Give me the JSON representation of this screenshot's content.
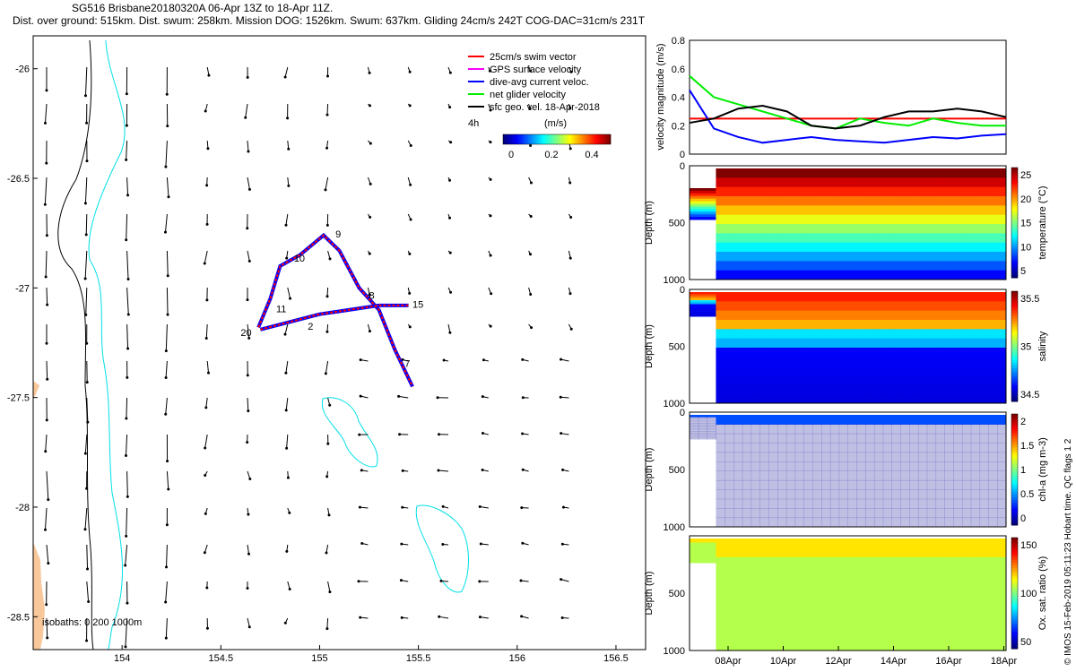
{
  "header": {
    "title_line1": "SG516 Brisbane20180320A 06-Apr 13Z to 18-Apr 11Z.",
    "title_line2": "Dist. over ground: 515km. Dist. swum: 258km. Mission DOG: 1526km. Swum: 637km. Gliding 24cm/s 242T COG-DAC=31cm/s 231T"
  },
  "credit": "© IMOS 15-Feb-2019 05:11:23 Hobart time. QC flags 1  2",
  "colors": {
    "glider_track": "#ff0000",
    "dac": "#0000ff",
    "net": "#00ee00",
    "isobath_200": "#00e0e8",
    "coast": "#f8c79a"
  },
  "chart_data": [
    {
      "type": "map",
      "id": "track-map",
      "xlim": [
        153.55,
        156.65
      ],
      "ylim": [
        -28.65,
        -25.85
      ],
      "x_ticks": [
        "154",
        "154.5",
        "155",
        "155.5",
        "156",
        "156.5"
      ],
      "y_ticks": [
        "-26",
        "-26.5",
        "-27",
        "-27.5",
        "-28",
        "-28.5"
      ],
      "legend": [
        {
          "label": "25cm/s swim vector",
          "color": "#ff0000"
        },
        {
          "label": "GPS surface velocity",
          "color": "#ff00ff"
        },
        {
          "label": "dive-avg current veloc.",
          "color": "#0000ff"
        },
        {
          "label": "net glider velocity",
          "color": "#00ee00"
        },
        {
          "label": "sfc geo. vel. 18-Apr-2018",
          "color": "#000000"
        }
      ],
      "colorbar": {
        "title": "(m/s)",
        "tick_labels": [
          "0",
          "0.2",
          "0.4"
        ],
        "range": [
          0,
          0.5
        ]
      },
      "label_4h": "4h",
      "isobaths_label": "isobaths: 0   200   1000m",
      "track": [
        [
          154.69,
          -27.18
        ],
        [
          154.75,
          -27.05
        ],
        [
          154.8,
          -26.9
        ],
        [
          154.9,
          -26.85
        ],
        [
          155.02,
          -26.76
        ],
        [
          155.1,
          -26.83
        ],
        [
          155.2,
          -27.0
        ],
        [
          155.3,
          -27.1
        ],
        [
          155.38,
          -27.28
        ],
        [
          155.47,
          -27.45
        ]
      ],
      "track2": [
        [
          154.7,
          -27.19
        ],
        [
          155.0,
          -27.12
        ],
        [
          155.3,
          -27.08
        ],
        [
          155.45,
          -27.08
        ]
      ],
      "waypoints": [
        {
          "label": "20",
          "lon": 154.6,
          "lat": -27.22
        },
        {
          "label": "11",
          "lon": 154.78,
          "lat": -27.11
        },
        {
          "label": "10",
          "lon": 154.87,
          "lat": -26.88
        },
        {
          "label": "9",
          "lon": 155.08,
          "lat": -26.77
        },
        {
          "label": "8",
          "lon": 155.25,
          "lat": -27.05
        },
        {
          "label": "15",
          "lon": 155.47,
          "lat": -27.09
        },
        {
          "label": "7",
          "lon": 155.43,
          "lat": -27.36
        },
        {
          "label": "2",
          "lon": 154.94,
          "lat": -27.19
        }
      ]
    },
    {
      "type": "line",
      "id": "velocity-timeseries",
      "ylabel": "velocity magnitude (m/s)",
      "ylim": [
        0,
        0.8
      ],
      "y_ticks": [
        "0",
        "0.2",
        "0.4",
        "0.6",
        "0.8"
      ],
      "x_ticks": [
        "08Apr",
        "10Apr",
        "12Apr",
        "14Apr",
        "16Apr",
        "18Apr"
      ],
      "series": [
        {
          "name": "swim",
          "color": "#ff0000",
          "values": [
            0.25,
            0.25,
            0.25,
            0.25,
            0.25,
            0.25,
            0.25,
            0.25,
            0.25,
            0.25,
            0.25,
            0.25,
            0.25,
            0.25
          ]
        },
        {
          "name": "dive-avg",
          "color": "#0000ff",
          "values": [
            0.45,
            0.18,
            0.12,
            0.08,
            0.1,
            0.12,
            0.1,
            0.09,
            0.08,
            0.1,
            0.12,
            0.11,
            0.13,
            0.14
          ]
        },
        {
          "name": "net",
          "color": "#00ee00",
          "values": [
            0.55,
            0.4,
            0.35,
            0.3,
            0.25,
            0.2,
            0.18,
            0.25,
            0.22,
            0.2,
            0.25,
            0.22,
            0.2,
            0.2
          ]
        },
        {
          "name": "gps",
          "color": "#000000",
          "values": [
            0.22,
            0.25,
            0.32,
            0.34,
            0.3,
            0.2,
            0.18,
            0.2,
            0.26,
            0.3,
            0.3,
            0.32,
            0.3,
            0.26
          ]
        }
      ]
    },
    {
      "type": "heatmap",
      "id": "temperature",
      "ylabel": "Depth (m)",
      "colorbar_label": "temperature (°C)",
      "y_ticks": [
        "0",
        "500",
        "1000"
      ],
      "colorbar_ticks": [
        "25",
        "20",
        "15",
        "10",
        "5"
      ],
      "range": [
        4,
        27
      ]
    },
    {
      "type": "heatmap",
      "id": "salinity",
      "ylabel": "Depth (m)",
      "colorbar_label": "salinity",
      "y_ticks": [
        "0",
        "500",
        "1000"
      ],
      "colorbar_ticks": [
        "35.5",
        "35",
        "34.5"
      ],
      "range": [
        34.3,
        35.8
      ]
    },
    {
      "type": "heatmap",
      "id": "chla",
      "ylabel": "Depth (m)",
      "colorbar_label": "chl-a (mg m-3)",
      "y_ticks": [
        "0",
        "500",
        "1000"
      ],
      "colorbar_ticks": [
        "2",
        "1.5",
        "1",
        "0.5",
        "0"
      ],
      "range": [
        0,
        2
      ]
    },
    {
      "type": "heatmap",
      "id": "oxygen",
      "ylabel": "Depth (m)",
      "colorbar_label": "Ox. sat. ratio (%)",
      "y_ticks": [
        "500",
        "1000"
      ],
      "colorbar_ticks": [
        "150",
        "100",
        "50"
      ],
      "range": [
        20,
        175
      ]
    }
  ]
}
